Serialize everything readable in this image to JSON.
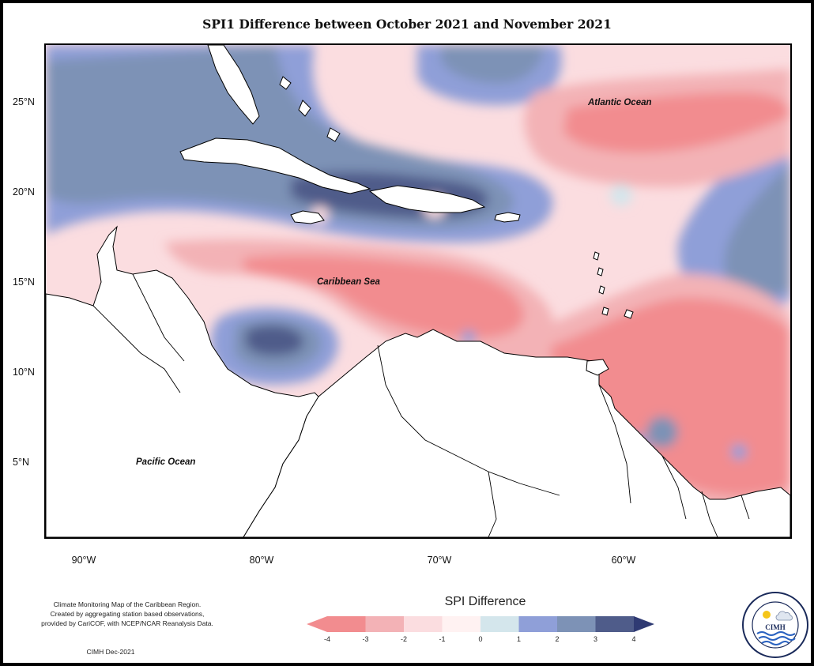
{
  "title": "SPI1 Difference between October 2021 and November 2021",
  "map": {
    "lat_labels": [
      "25°N",
      "20°N",
      "15°N",
      "10°N",
      "5°N"
    ],
    "lon_labels": [
      "90°W",
      "80°W",
      "70°W",
      "60°W"
    ],
    "region_labels": {
      "atlantic": "Atlantic Ocean",
      "caribbean": "Caribbean Sea",
      "pacific": "Pacific Ocean"
    }
  },
  "legend": {
    "title": "SPI Difference",
    "ticks": [
      "-4",
      "-3",
      "-2",
      "-1",
      "0",
      "1",
      "2",
      "3",
      "4"
    ],
    "colors": [
      "#f28c8f",
      "#f3b2b6",
      "#fbdde0",
      "#fff2f2",
      "#d4e6ec",
      "#8f9fd8",
      "#7d92b6",
      "#4f5c8a"
    ],
    "low_color": "#f28c8f",
    "high_color": "#2f3a73"
  },
  "credits": {
    "line1": "Climate Monitoring Map of the Caribbean Region.",
    "line2": "Created by aggregating station based observations,",
    "line3": "provided by CariCOF, with NCEP/NCAR Reanalysis Data.",
    "date": "CIMH Dec-2021"
  },
  "logo": {
    "text": "CIMH",
    "ring_text": "Caribbean Institute for Meteorology and Hydrology"
  }
}
